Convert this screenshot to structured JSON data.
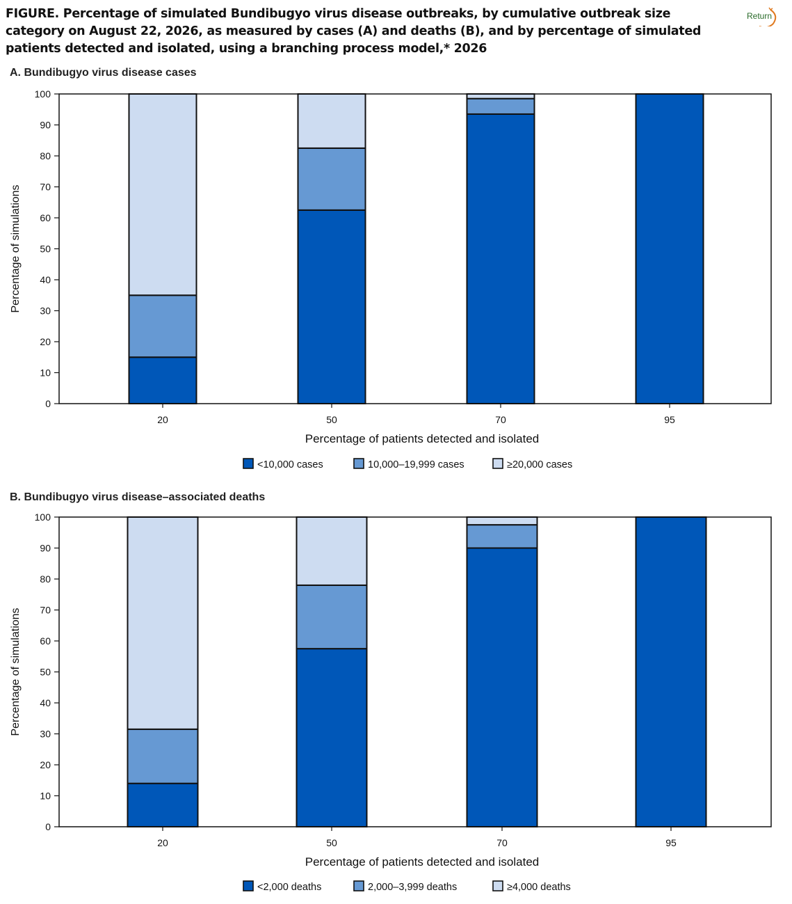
{
  "header": {
    "figure_label": "FIGURE",
    "title_text": ". Percentage of simulated Bundibugyo virus disease outbreaks, by cumulative outbreak size category on August 22, 2026, as measured by cases (A) and deaths (B), and by percentage of simulated patients detected and isolated, using a branching process model,* 2026",
    "return_label": "Return",
    "return_color": "#e07a1f"
  },
  "chart_data": [
    {
      "type": "bar",
      "stacked": true,
      "title": "A. Bundibugyo virus disease cases",
      "xlabel": "Percentage of patients detected and isolated",
      "ylabel": "Percentage of simulations",
      "categories": [
        "20",
        "50",
        "70",
        "95"
      ],
      "ylim": [
        0,
        100
      ],
      "yticks": [
        0,
        10,
        20,
        30,
        40,
        50,
        60,
        70,
        80,
        90,
        100
      ],
      "legend_position": "bottom",
      "series": [
        {
          "name": "<10,000 cases",
          "color": "#0057b8",
          "values": [
            15,
            62.5,
            93.5,
            100
          ]
        },
        {
          "name": "10,000–19,999 cases",
          "color": "#6699d3",
          "values": [
            20,
            20,
            5,
            0
          ]
        },
        {
          "name": "≥20,000 cases",
          "color": "#cddcf1",
          "values": [
            65,
            17.5,
            1.5,
            0
          ]
        }
      ]
    },
    {
      "type": "bar",
      "stacked": true,
      "title": "B. Bundibugyo virus disease–associated deaths",
      "xlabel": "Percentage of patients detected and isolated",
      "ylabel": "Percentage of simulations",
      "categories": [
        "20",
        "50",
        "70",
        "95"
      ],
      "ylim": [
        0,
        100
      ],
      "yticks": [
        0,
        10,
        20,
        30,
        40,
        50,
        60,
        70,
        80,
        90,
        100
      ],
      "legend_position": "bottom",
      "series": [
        {
          "name": "<2,000 deaths",
          "color": "#0057b8",
          "values": [
            14,
            57.5,
            90,
            100
          ]
        },
        {
          "name": "2,000–3,999 deaths",
          "color": "#6699d3",
          "values": [
            17.5,
            20.5,
            7.5,
            0
          ]
        },
        {
          "name": "≥4,000 deaths",
          "color": "#cddcf1",
          "values": [
            68.5,
            22,
            2.5,
            0
          ]
        }
      ]
    }
  ]
}
